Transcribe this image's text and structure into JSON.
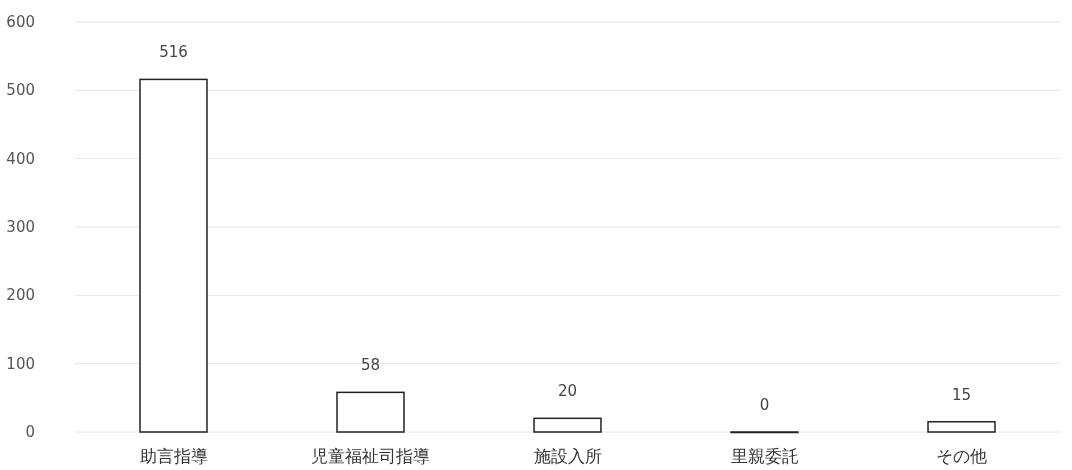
{
  "chart_data": {
    "type": "bar",
    "categories": [
      "助言指導",
      "児童福祉司指導",
      "施設入所",
      "里親委託",
      "その他"
    ],
    "values": [
      516,
      58,
      20,
      0,
      15
    ],
    "color": "#ffffff",
    "ylim": [
      0,
      600
    ],
    "yticks": [
      0,
      100,
      200,
      300,
      400,
      500,
      600
    ],
    "grid": "y",
    "data_labels": true
  }
}
